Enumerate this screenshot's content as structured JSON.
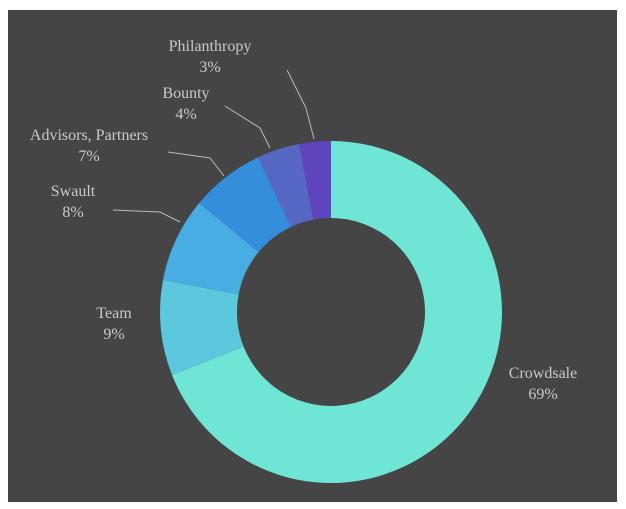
{
  "chart_data": {
    "type": "pie",
    "donut": true,
    "legend": "none",
    "slices": [
      {
        "label": "Crowdsale",
        "value": 69,
        "pct_label": "69%",
        "color": "#6fe6d5"
      },
      {
        "label": "Team",
        "value": 9,
        "pct_label": "9%",
        "color": "#5bc8de"
      },
      {
        "label": "Swault",
        "value": 8,
        "pct_label": "8%",
        "color": "#48ade2"
      },
      {
        "label": "Advisors, Partners",
        "value": 7,
        "pct_label": "7%",
        "color": "#348edb"
      },
      {
        "label": "Bounty",
        "value": 4,
        "pct_label": "4%",
        "color": "#5767c4"
      },
      {
        "label": "Philanthropy",
        "value": 3,
        "pct_label": "3%",
        "color": "#6044bd"
      }
    ],
    "background_color": "#454545",
    "label_color": "#c9c9c9"
  }
}
